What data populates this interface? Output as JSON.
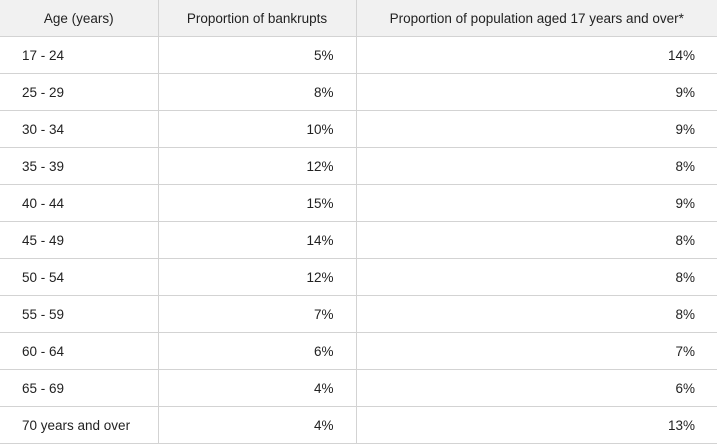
{
  "table": {
    "headers": [
      "Age (years)",
      "Proportion of bankrupts",
      "Proportion of population aged 17 years and over*"
    ],
    "rows": [
      [
        "17 - 24",
        "5%",
        "14%"
      ],
      [
        "25 - 29",
        "8%",
        "9%"
      ],
      [
        "30 - 34",
        "10%",
        "9%"
      ],
      [
        "35 - 39",
        "12%",
        "8%"
      ],
      [
        "40 - 44",
        "15%",
        "9%"
      ],
      [
        "45 - 49",
        "14%",
        "8%"
      ],
      [
        "50 - 54",
        "12%",
        "8%"
      ],
      [
        "55 - 59",
        "7%",
        "8%"
      ],
      [
        "60 - 64",
        "6%",
        "7%"
      ],
      [
        "65 - 69",
        "4%",
        "6%"
      ],
      [
        "70 years and over",
        "4%",
        "13%"
      ]
    ]
  }
}
